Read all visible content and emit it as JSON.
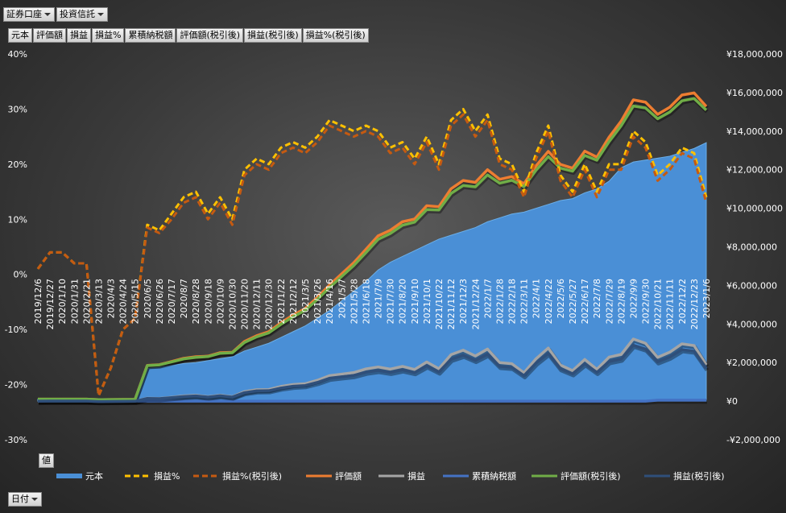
{
  "report_filters": [
    "証券口座",
    "投資信託"
  ],
  "field_buttons": [
    "元本",
    "評価額",
    "損益",
    "損益%",
    "累積納税額",
    "評価額(税引後)",
    "損益(税引後)",
    "損益%(税引後)"
  ],
  "values_button": "値",
  "axis_field": "日付",
  "chart_data": {
    "type": "line",
    "categories": [
      "2019/12/6",
      "2019/12/27",
      "2020/1/10",
      "2020/1/31",
      "2020/2/21",
      "2020/3/13",
      "2020/4/3",
      "2020/4/24",
      "2020/5/15",
      "2020/6/5",
      "2020/6/26",
      "2020/7/17",
      "2020/8/7",
      "2020/8/28",
      "2020/9/18",
      "2020/10/9",
      "2020/10/30",
      "2020/11/20",
      "2020/12/11",
      "2020/12/30",
      "2021/1/22",
      "2021/2/12",
      "2021/3/5",
      "2021/3/26",
      "2021/4/16",
      "2021/5/7",
      "2021/5/28",
      "2021/6/18",
      "2021/7/9",
      "2021/7/30",
      "2021/8/20",
      "2021/9/10",
      "2021/10/1",
      "2021/10/22",
      "2021/11/12",
      "2021/12/3",
      "2021/12/24",
      "2022/1/7",
      "2022/1/28",
      "2022/2/18",
      "2022/3/11",
      "2022/4/1",
      "2022/4/22",
      "2022/5/6",
      "2022/5/27",
      "2022/6/17",
      "2022/7/8",
      "2022/7/29",
      "2022/8/19",
      "2022/9/9",
      "2022/9/30",
      "2022/10/21",
      "2022/11/11",
      "2022/12/2",
      "2022/12/23",
      "2023/1/6"
    ],
    "series": [
      {
        "name": "元本",
        "color": "#4a8fd6",
        "kind": "area",
        "axis": "y2",
        "values": [
          100000,
          100000,
          100000,
          100000,
          100000,
          100000,
          100000,
          100000,
          100000,
          1700000,
          1750000,
          1850000,
          1950000,
          2000000,
          2100000,
          2200000,
          2300000,
          2600000,
          2800000,
          3000000,
          3300000,
          3600000,
          3900000,
          4300000,
          4700000,
          5200000,
          5700000,
          6200000,
          6800000,
          7200000,
          7500000,
          7800000,
          8100000,
          8400000,
          8600000,
          8800000,
          9000000,
          9300000,
          9500000,
          9700000,
          9800000,
          10000000,
          10200000,
          10400000,
          10500000,
          10800000,
          11000000,
          11400000,
          12100000,
          12400000,
          12500000,
          12600000,
          12700000,
          12900000,
          13100000,
          13400000
        ]
      },
      {
        "name": "損益%",
        "color": "#ffc000",
        "kind": "line",
        "dash": true,
        "values": [
          1,
          4,
          4,
          2,
          2,
          -22,
          -17,
          -10,
          -8,
          9,
          8,
          11,
          14,
          15,
          11,
          14,
          10,
          19,
          21,
          20,
          23,
          24,
          23,
          25,
          28,
          27,
          26,
          27,
          26,
          23,
          24,
          21,
          25,
          20,
          28,
          30,
          26,
          29,
          21,
          20,
          15,
          22,
          27,
          18,
          15,
          20,
          15,
          20,
          20,
          26,
          24,
          18,
          20,
          23,
          22,
          14
        ]
      },
      {
        "name": "損益%(税引後)",
        "color": "#c55a11",
        "kind": "line",
        "dash": true,
        "values": [
          1,
          4,
          4,
          2,
          2,
          -22,
          -17,
          -10,
          -8,
          8.5,
          7.5,
          10,
          13,
          14,
          10,
          13,
          9,
          18,
          20,
          19,
          22,
          23,
          22,
          24,
          27,
          26,
          25,
          26,
          25,
          22,
          23,
          20,
          24,
          19,
          27,
          29,
          25,
          28,
          20,
          19,
          14,
          21,
          26,
          17,
          14,
          19,
          14,
          19,
          19,
          25,
          23,
          17,
          19,
          22,
          21,
          13
        ]
      },
      {
        "name": "評価額",
        "color": "#ed7d31",
        "kind": "line",
        "axis": "y2",
        "values": [
          101000,
          104000,
          104000,
          102000,
          102000,
          78000,
          83000,
          90000,
          92000,
          1850000,
          1890000,
          2050000,
          2220000,
          2300000,
          2330000,
          2510000,
          2530000,
          3090000,
          3390000,
          3600000,
          4060000,
          4460000,
          4800000,
          5380000,
          6020000,
          6600000,
          7180000,
          7870000,
          8570000,
          8860000,
          9300000,
          9440000,
          10130000,
          10080000,
          11010000,
          11440000,
          11340000,
          12000000,
          11500000,
          11640000,
          11270000,
          12200000,
          12950000,
          12270000,
          12080000,
          12960000,
          12650000,
          13680000,
          14520000,
          15620000,
          15500000,
          14870000,
          15240000,
          15870000,
          15980000,
          15280000
        ]
      },
      {
        "name": "損益",
        "color": "#a5a5a5",
        "kind": "line",
        "axis": "y2",
        "values": [
          1000,
          4000,
          4000,
          2000,
          2000,
          -22000,
          -17000,
          -10000,
          -8000,
          150000,
          140000,
          200000,
          270000,
          300000,
          230000,
          310000,
          230000,
          490000,
          590000,
          600000,
          760000,
          860000,
          900000,
          1080000,
          1320000,
          1400000,
          1480000,
          1670000,
          1770000,
          1660000,
          1800000,
          1640000,
          2030000,
          1680000,
          2410000,
          2640000,
          2340000,
          2700000,
          2000000,
          1940000,
          1470000,
          2200000,
          2750000,
          1870000,
          1580000,
          2160000,
          1650000,
          2280000,
          2420000,
          3220000,
          3000000,
          2270000,
          2540000,
          2970000,
          2880000,
          1880000
        ]
      },
      {
        "name": "累積納税額",
        "color": "#4472c4",
        "kind": "line",
        "axis": "y2",
        "values": [
          0,
          0,
          0,
          0,
          0,
          0,
          0,
          0,
          0,
          0,
          0,
          0,
          0,
          0,
          0,
          0,
          0,
          0,
          0,
          0,
          0,
          0,
          0,
          0,
          0,
          0,
          0,
          0,
          0,
          0,
          0,
          0,
          0,
          0,
          0,
          0,
          0,
          0,
          0,
          0,
          0,
          0,
          0,
          0,
          0,
          0,
          0,
          0,
          0,
          0,
          0,
          50000,
          50000,
          50000,
          50000,
          50000
        ]
      },
      {
        "name": "評価額(税引後)",
        "color": "#70ad47",
        "kind": "line",
        "axis": "y2",
        "values": [
          101000,
          104000,
          104000,
          102000,
          102000,
          78000,
          83000,
          90000,
          92000,
          1840000,
          1880000,
          2030000,
          2190000,
          2270000,
          2310000,
          2480000,
          2510000,
          3040000,
          3330000,
          3540000,
          3980000,
          4370000,
          4710000,
          5270000,
          5890000,
          6460000,
          7030000,
          7700000,
          8390000,
          8690000,
          9120000,
          9280000,
          9930000,
          9910000,
          10770000,
          11180000,
          11110000,
          11730000,
          11300000,
          11450000,
          11120000,
          11980000,
          12680000,
          12080000,
          11920000,
          12740000,
          12490000,
          13450000,
          14280000,
          15300000,
          15200000,
          14640000,
          14990000,
          15570000,
          15690000,
          15090000
        ]
      },
      {
        "name": "損益(税引後)",
        "color": "#2f4f7a",
        "kind": "line",
        "axis": "y2",
        "values": [
          1000,
          4000,
          4000,
          2000,
          2000,
          -22000,
          -17000,
          -10000,
          -8000,
          140000,
          130000,
          180000,
          240000,
          270000,
          210000,
          280000,
          210000,
          440000,
          530000,
          540000,
          680000,
          770000,
          810000,
          970000,
          1190000,
          1260000,
          1330000,
          1500000,
          1590000,
          1490000,
          1620000,
          1480000,
          1830000,
          1510000,
          2170000,
          2380000,
          2110000,
          2430000,
          1800000,
          1750000,
          1320000,
          1980000,
          2480000,
          1680000,
          1420000,
          1940000,
          1490000,
          2050000,
          2180000,
          2900000,
          2700000,
          2040000,
          2290000,
          2670000,
          2590000,
          1690000
        ]
      }
    ],
    "ylim": [
      -30,
      40
    ],
    "yticks": [
      {
        "value": -30,
        "label": "-30%"
      },
      {
        "value": -20,
        "label": "-20%"
      },
      {
        "value": -10,
        "label": "-10%"
      },
      {
        "value": 0,
        "label": "0%"
      },
      {
        "value": 10,
        "label": "10%"
      },
      {
        "value": 20,
        "label": "20%"
      },
      {
        "value": 30,
        "label": "30%"
      },
      {
        "value": 40,
        "label": "40%"
      }
    ],
    "y2lim": [
      -2000000,
      18000000
    ],
    "y2ticks": [
      {
        "value": -2000000,
        "label": "-¥2,000,000"
      },
      {
        "value": 0,
        "label": "¥0"
      },
      {
        "value": 2000000,
        "label": "¥2,000,000"
      },
      {
        "value": 4000000,
        "label": "¥4,000,000"
      },
      {
        "value": 6000000,
        "label": "¥6,000,000"
      },
      {
        "value": 8000000,
        "label": "¥8,000,000"
      },
      {
        "value": 10000000,
        "label": "¥10,000,000"
      },
      {
        "value": 12000000,
        "label": "¥12,000,000"
      },
      {
        "value": 14000000,
        "label": "¥14,000,000"
      },
      {
        "value": 16000000,
        "label": "¥16,000,000"
      },
      {
        "value": 18000000,
        "label": "¥18,000,000"
      }
    ],
    "grid": false,
    "legend": "bottom"
  }
}
